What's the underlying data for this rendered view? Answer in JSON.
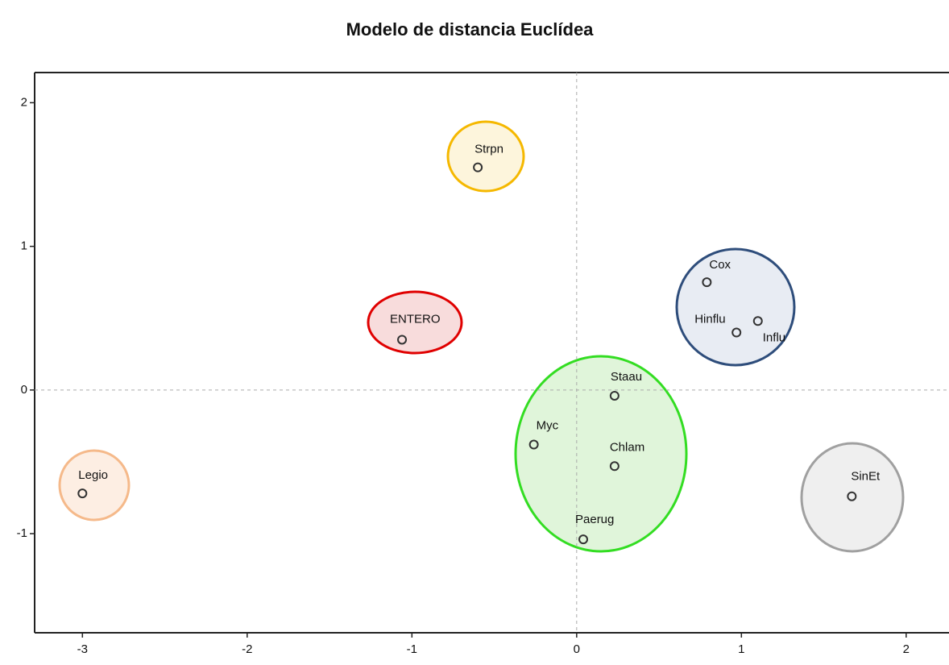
{
  "chart_data": {
    "type": "scatter",
    "title": "Modelo de distancia Euclídea",
    "labels": [
      "Strpn",
      "Cox",
      "Hinflu",
      "Influ",
      "ENTERO",
      "Staau",
      "Myc",
      "Chlam",
      "Paerug",
      "Legio",
      "SinEt"
    ],
    "x": [
      -0.6,
      0.79,
      0.97,
      1.1,
      -1.06,
      0.23,
      -0.26,
      0.23,
      0.04,
      -3.0,
      1.67
    ],
    "values": [
      1.55,
      0.75,
      0.4,
      0.48,
      0.35,
      -0.04,
      -0.38,
      -0.53,
      -1.04,
      -0.72,
      -0.74
    ],
    "color": "#333333",
    "xlim": [
      -3.29,
      2.26
    ],
    "ylim": [
      -1.69,
      2.21
    ],
    "xticks": [
      -3,
      -2,
      -1,
      0,
      1,
      2
    ],
    "yticks": [
      -1,
      0,
      1,
      2
    ]
  }
}
